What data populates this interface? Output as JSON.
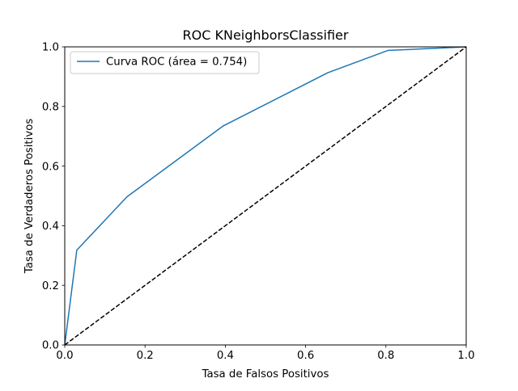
{
  "chart_data": {
    "type": "line",
    "title": "ROC KNeighborsClassifier",
    "xlabel": "Tasa de Falsos Positivos",
    "ylabel": "Tasa de Verdaderos Positivos",
    "xlim": [
      0.0,
      1.0
    ],
    "ylim": [
      0.0,
      1.0
    ],
    "x_ticks": [
      "0.0",
      "0.2",
      "0.4",
      "0.6",
      "0.8",
      "1.0"
    ],
    "y_ticks": [
      "0.0",
      "0.2",
      "0.4",
      "0.6",
      "0.8",
      "1.0"
    ],
    "grid": false,
    "legend_position": "upper-left",
    "series": [
      {
        "name": "Curva ROC (área = 0.754)",
        "color": "#1f77b4",
        "style": "solid",
        "x": [
          0.0,
          0.03,
          0.155,
          0.395,
          0.655,
          0.805,
          1.0
        ],
        "y": [
          0.0,
          0.318,
          0.497,
          0.735,
          0.913,
          0.988,
          1.0
        ]
      },
      {
        "color": "#000000",
        "style": "dashed",
        "x": [
          0.0,
          1.0
        ],
        "y": [
          0.0,
          1.0
        ]
      }
    ]
  }
}
